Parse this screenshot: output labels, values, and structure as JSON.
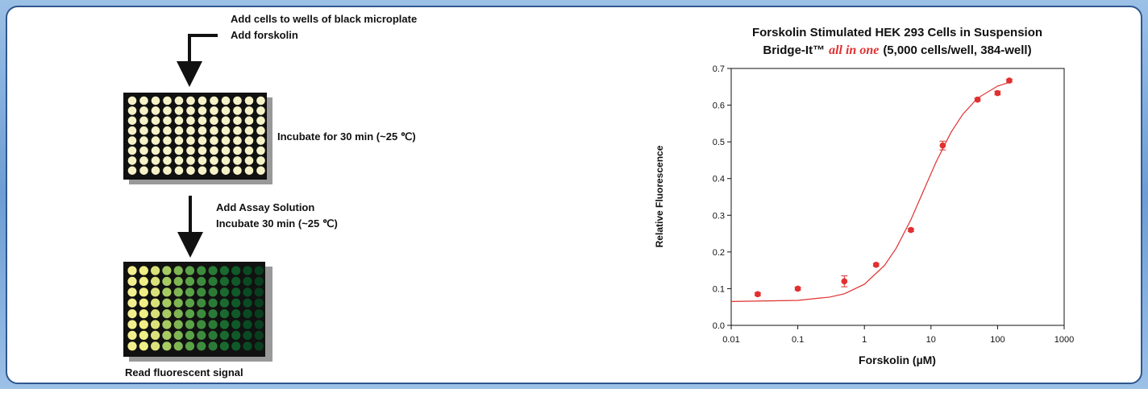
{
  "workflow": {
    "step1": [
      "Add cells to wells of black microplate",
      "Add forskolin"
    ],
    "step2": "Incubate for 30 min (~25 ℃)",
    "step3": [
      "Add Assay Solution",
      "Incubate 30 min (~25 ℃)"
    ],
    "step4": "Read fluorescent signal"
  },
  "chart_data": {
    "type": "scatter",
    "title": "Forskolin Stimulated HEK 293 Cells in Suspension",
    "subtitle_parts": [
      "Bridge-It™",
      "all in one",
      "(5,000 cells/well, 384-well)"
    ],
    "x_label": "Forskolin (µM)",
    "y_label": "Relative Fluorescence",
    "log_x": true,
    "xlim": [
      0.01,
      1000
    ],
    "xticks": [
      0.01,
      0.1,
      1,
      10,
      100,
      1000
    ],
    "ylim": [
      0,
      0.7
    ],
    "yticks": [
      {
        "value": 0,
        "label": "0.0"
      },
      0.1,
      0.2,
      0.3,
      0.4,
      0.5,
      0.6,
      0.7
    ],
    "points": {
      "color": "#e03030",
      "x": [
        0.025,
        0.1,
        0.5,
        1.5,
        5,
        15,
        50,
        100,
        150
      ],
      "values": [
        0.085,
        0.1,
        0.12,
        0.165,
        0.26,
        0.49,
        0.615,
        0.633,
        0.667
      ],
      "errors": [
        0.004,
        0.004,
        0.015,
        0.004,
        0.004,
        0.012,
        0.004,
        0.005,
        0.004
      ]
    },
    "fit": {
      "color": "#e03030",
      "x": [
        0.01,
        0.1,
        0.3,
        0.5,
        1,
        2,
        3,
        5,
        8,
        12,
        20,
        30,
        50,
        100,
        150
      ],
      "y": [
        0.065,
        0.068,
        0.077,
        0.086,
        0.112,
        0.163,
        0.21,
        0.288,
        0.373,
        0.446,
        0.526,
        0.575,
        0.619,
        0.652,
        0.662
      ]
    }
  }
}
